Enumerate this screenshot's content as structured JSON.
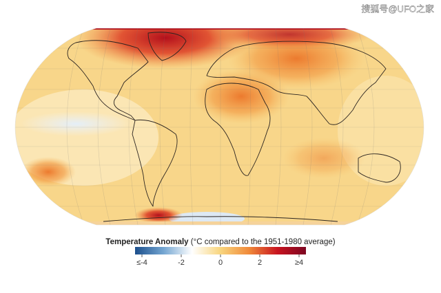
{
  "watermark": "搜狐号@UFO之家",
  "legend": {
    "title": "Temperature Anomaly",
    "subtitle": "(°C compared to the 1951-1980 average)",
    "range": [
      -4,
      4
    ],
    "colors": [
      "#1c4f8c",
      "#74a6d2",
      "#ffffff",
      "#f8d57e",
      "#f08a3a",
      "#c8141f",
      "#7d0622"
    ],
    "ticks": [
      {
        "value": -4,
        "label": "≤-4"
      },
      -2,
      0,
      2,
      {
        "value": 4,
        "label": "≥4"
      }
    ]
  }
}
